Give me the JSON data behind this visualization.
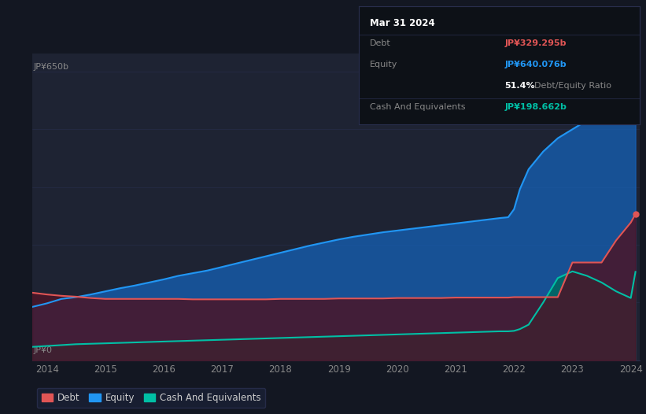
{
  "background_color": "#131722",
  "plot_bg_color": "#1e2333",
  "ylabel_top": "JP¥650b",
  "ylabel_bottom": "JP¥0",
  "debt_color": "#e05555",
  "equity_color": "#2196f3",
  "cash_color": "#00bfa5",
  "equity_fill_color": "#1565c0",
  "cash_fill_color": "#00695c",
  "debt_fill_color": "#4a1528",
  "years": [
    2013.75,
    2014.0,
    2014.25,
    2014.5,
    2014.75,
    2015.0,
    2015.25,
    2015.5,
    2015.75,
    2016.0,
    2016.25,
    2016.5,
    2016.75,
    2017.0,
    2017.25,
    2017.5,
    2017.75,
    2018.0,
    2018.25,
    2018.5,
    2018.75,
    2019.0,
    2019.25,
    2019.5,
    2019.75,
    2020.0,
    2020.25,
    2020.5,
    2020.75,
    2021.0,
    2021.25,
    2021.5,
    2021.75,
    2021.9,
    2022.0,
    2022.1,
    2022.25,
    2022.5,
    2022.75,
    2023.0,
    2023.25,
    2023.5,
    2023.75,
    2024.0,
    2024.08
  ],
  "equity": [
    120,
    128,
    138,
    142,
    148,
    155,
    162,
    168,
    175,
    182,
    190,
    196,
    202,
    210,
    218,
    226,
    234,
    242,
    250,
    258,
    265,
    272,
    278,
    283,
    288,
    292,
    296,
    300,
    304,
    308,
    312,
    316,
    320,
    322,
    340,
    385,
    430,
    470,
    500,
    520,
    540,
    555,
    570,
    610,
    640
  ],
  "debt": [
    152,
    148,
    145,
    143,
    140,
    138,
    138,
    138,
    138,
    138,
    138,
    137,
    137,
    137,
    137,
    137,
    137,
    138,
    138,
    138,
    138,
    139,
    139,
    139,
    139,
    140,
    140,
    140,
    140,
    141,
    141,
    141,
    141,
    141,
    142,
    142,
    142,
    142,
    142,
    220,
    220,
    220,
    270,
    310,
    329
  ],
  "cash": [
    30,
    32,
    34,
    36,
    37,
    38,
    39,
    40,
    41,
    42,
    43,
    44,
    45,
    46,
    47,
    48,
    49,
    50,
    51,
    52,
    53,
    54,
    55,
    56,
    57,
    58,
    59,
    60,
    61,
    62,
    63,
    64,
    65,
    65,
    66,
    70,
    80,
    130,
    185,
    200,
    190,
    175,
    155,
    140,
    199
  ],
  "xlim": [
    2013.75,
    2024.15
  ],
  "ylim": [
    0,
    690
  ],
  "xticks": [
    2014,
    2015,
    2016,
    2017,
    2018,
    2019,
    2020,
    2021,
    2022,
    2023,
    2024
  ],
  "legend_items": [
    {
      "label": "Debt",
      "color": "#e05555"
    },
    {
      "label": "Equity",
      "color": "#2196f3"
    },
    {
      "label": "Cash And Equivalents",
      "color": "#00bfa5"
    }
  ],
  "tooltip": {
    "date": "Mar 31 2024",
    "debt_label": "Debt",
    "debt_value": "JP¥329.295b",
    "equity_label": "Equity",
    "equity_value": "JP¥640.076b",
    "ratio_value": "51.4%",
    "ratio_label": "Debt/Equity Ratio",
    "cash_label": "Cash And Equivalents",
    "cash_value": "JP¥198.662b",
    "debt_val_color": "#e05555",
    "equity_val_color": "#2196f3",
    "ratio_pct_color": "#ffffff",
    "ratio_txt_color": "#888888",
    "cash_val_color": "#00bfa5",
    "label_color": "#888888",
    "title_color": "#ffffff",
    "bg_color": "#0d1117",
    "border_color": "#2a3050"
  }
}
